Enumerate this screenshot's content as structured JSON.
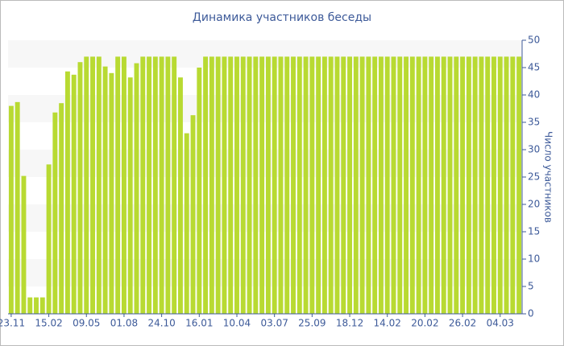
{
  "chart_data": {
    "type": "bar",
    "title": "Динамика участников беседы",
    "y_label": "Число участников",
    "categories": [
      "23.11",
      null,
      null,
      null,
      null,
      null,
      "15.02",
      null,
      null,
      null,
      null,
      null,
      "09.05",
      null,
      null,
      null,
      null,
      null,
      "01.08",
      null,
      null,
      null,
      null,
      null,
      "24.10",
      null,
      null,
      null,
      null,
      null,
      "16.01",
      null,
      null,
      null,
      null,
      null,
      "10.04",
      null,
      null,
      null,
      null,
      null,
      "03.07",
      null,
      null,
      null,
      null,
      null,
      "25.09",
      null,
      null,
      null,
      null,
      null,
      "18.12",
      null,
      null,
      null,
      null,
      null,
      "14.02",
      null,
      null,
      null,
      null,
      null,
      "20.02",
      null,
      null,
      null,
      null,
      null,
      "26.02",
      null,
      null,
      null,
      null,
      null,
      "04.03",
      null,
      null,
      null
    ],
    "values": [
      38,
      38.7,
      25.2,
      3,
      3,
      3,
      27.3,
      36.8,
      38.5,
      44.3,
      43.7,
      46,
      47,
      47,
      47,
      45.2,
      44,
      47,
      47,
      43.2,
      45.8,
      47,
      47,
      47,
      47,
      47,
      47,
      43.2,
      33,
      36.3,
      45,
      47,
      47,
      47,
      47,
      47,
      47,
      47,
      47,
      47,
      47,
      47,
      47,
      47,
      47,
      47,
      47,
      47,
      47,
      47,
      47,
      47,
      47,
      47,
      47,
      47,
      47,
      47,
      47,
      47,
      47,
      47,
      47,
      47,
      47,
      47,
      47,
      47,
      47,
      47,
      47,
      47,
      47,
      47,
      47,
      47,
      47,
      47,
      47,
      47,
      47,
      47
    ],
    "color": "#b8da32",
    "ylim": [
      0,
      50
    ],
    "yticks": [
      0,
      5,
      10,
      15,
      20,
      25,
      30,
      35,
      40,
      45,
      50
    ],
    "grid": true,
    "y_axis_side": "right"
  }
}
